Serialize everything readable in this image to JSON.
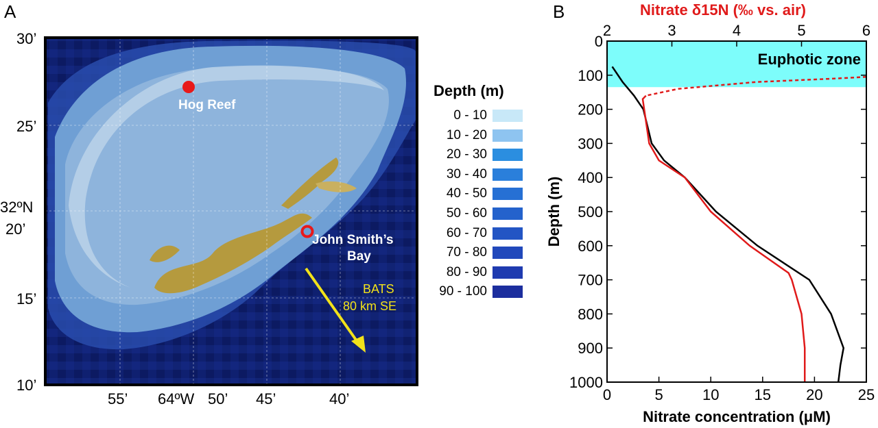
{
  "panel_a": {
    "letter": "A",
    "lat_labels": [
      "30’",
      "25’",
      "32ºN",
      "20’",
      "15’",
      "10’"
    ],
    "lon_labels": [
      "55’",
      "64ºW",
      "50’",
      "45’",
      "40’"
    ],
    "sites": [
      {
        "name": "Hog Reef",
        "type": "filled"
      },
      {
        "name": "John Smith’s",
        "name2": "Bay",
        "type": "open"
      }
    ],
    "bats_label": [
      "BATS",
      "80 km SE"
    ],
    "legend_title": "Depth (m)",
    "legend": [
      {
        "label": "0 - 10",
        "color": "#c8e8f8"
      },
      {
        "label": "10 - 20",
        "color": "#8ec4f0"
      },
      {
        "label": "20 - 30",
        "color": "#2b8ee0"
      },
      {
        "label": "30 - 40",
        "color": "#2a7fdb"
      },
      {
        "label": "40 - 50",
        "color": "#2670d4"
      },
      {
        "label": "50 - 60",
        "color": "#2462cc"
      },
      {
        "label": "60 - 70",
        "color": "#2355c4"
      },
      {
        "label": "70 - 80",
        "color": "#2148bb"
      },
      {
        "label": "80 - 90",
        "color": "#1f3bb0"
      },
      {
        "label": "90 - 100",
        "color": "#1c2e9e"
      }
    ],
    "colors": {
      "ocean": "#0f2070",
      "shelf": "#6f9fd4",
      "platform": "#8eb4dc",
      "reef": "#b8d0e8",
      "land": "#b59a3e",
      "site": "#e8191a",
      "arrow": "#f2e21a"
    }
  },
  "chart_data": {
    "type": "line",
    "panel_letter": "B",
    "top_axis_label": "Nitrate δ15N (‰ vs. air)",
    "bottom_axis_label": "Nitrate concentration (μM)",
    "ylabel": "Depth (m)",
    "x_bottom_lim": [
      0,
      25
    ],
    "x_top_lim": [
      2,
      6
    ],
    "ylim": [
      0,
      1000
    ],
    "y_inverted": true,
    "x_bottom_ticks": [
      "0",
      "5",
      "10",
      "15",
      "20",
      "25"
    ],
    "x_top_ticks": [
      "2",
      "3",
      "4",
      "5",
      "6"
    ],
    "y_ticks": [
      "0",
      "100",
      "200",
      "300",
      "400",
      "500",
      "600",
      "700",
      "800",
      "900",
      "1000"
    ],
    "euphotic_zone": {
      "label": "Euphotic zone",
      "depth_range": [
        0,
        135
      ],
      "color": "#7dfdfb"
    },
    "series": [
      {
        "axis": "bottom",
        "color": "#000000",
        "depth": [
          75,
          120,
          160,
          200,
          300,
          350,
          400,
          500,
          600,
          700,
          800,
          900,
          950,
          1000
        ],
        "values": [
          0.5,
          1.5,
          2.6,
          3.5,
          4.3,
          5.5,
          7.5,
          10.5,
          14.5,
          19.5,
          21.6,
          22.8,
          22.5,
          22.3
        ]
      },
      {
        "axis": "top",
        "color": "#e01a1a",
        "dashed_above": 165,
        "depth": [
          105,
          110,
          120,
          140,
          160,
          170,
          300,
          350,
          400,
          500,
          600,
          680,
          700,
          800,
          900,
          1000
        ],
        "values": [
          6.0,
          5.5,
          4.3,
          3.1,
          2.6,
          2.55,
          2.65,
          2.8,
          3.2,
          3.6,
          4.2,
          4.8,
          4.85,
          5.0,
          5.05,
          5.05
        ]
      }
    ]
  }
}
